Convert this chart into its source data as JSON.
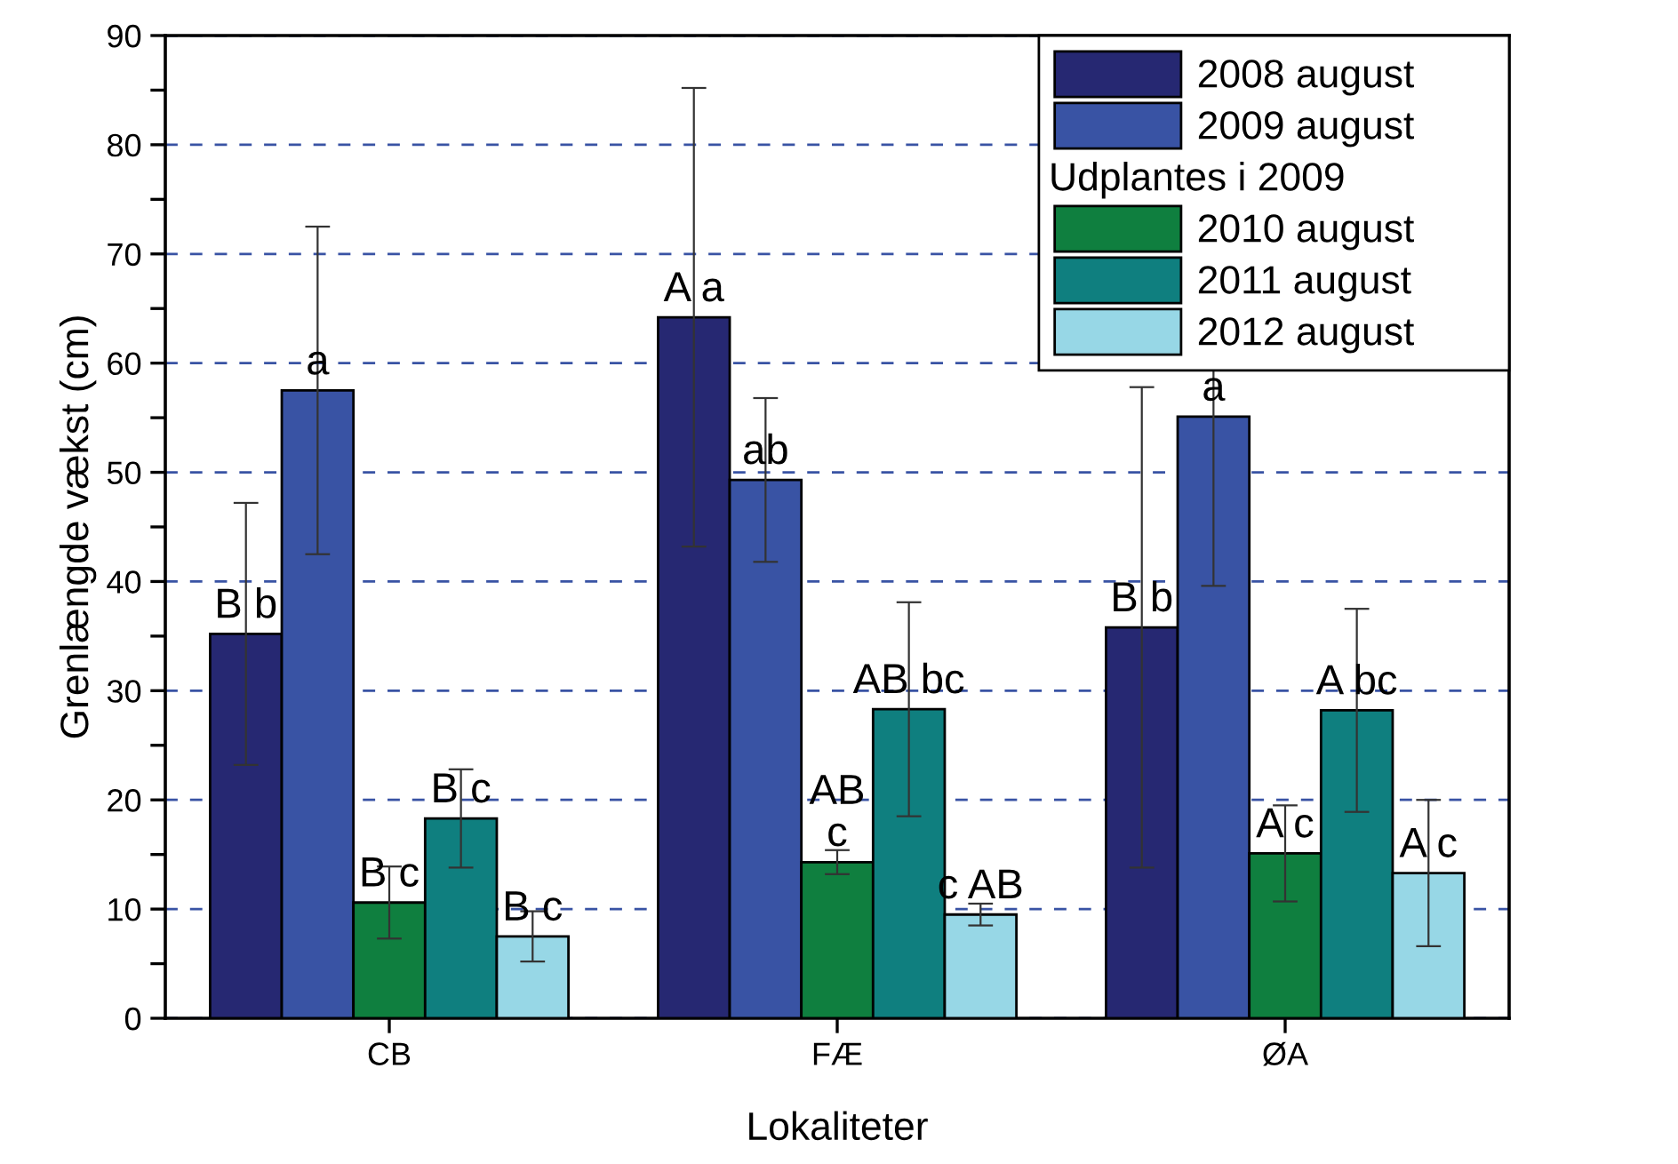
{
  "chart_data": {
    "type": "bar",
    "xlabel": "Lokaliteter",
    "ylabel": "Grenlængde vækst (cm)",
    "categories": [
      "CB",
      "FÆ",
      "ØA"
    ],
    "series": [
      {
        "name": "2008 august",
        "color": "#262872",
        "values": [
          35.2,
          64.2,
          35.8
        ],
        "errors": [
          12,
          21,
          22
        ],
        "value_labels": [
          "B b",
          "A a",
          "B b"
        ]
      },
      {
        "name": "2009 august",
        "color": "#3953a4",
        "values": [
          57.5,
          49.3,
          55.1
        ],
        "errors": [
          15,
          7.5,
          15.5
        ],
        "value_labels": [
          "a",
          "ab",
          "a"
        ]
      },
      {
        "name": "2010 august",
        "color": "#0f7f3f",
        "values": [
          10.6,
          14.3,
          15.1
        ],
        "errors": [
          3.3,
          1.1,
          4.4
        ],
        "value_labels": [
          "B c",
          "AB\nc",
          "A c"
        ]
      },
      {
        "name": "2011 august",
        "color": "#0f7f7f",
        "values": [
          18.3,
          28.3,
          28.2
        ],
        "errors": [
          4.5,
          9.8,
          9.3
        ],
        "value_labels": [
          "B c",
          "AB bc",
          "A bc"
        ]
      },
      {
        "name": "2012 august",
        "color": "#97d7e6",
        "values": [
          7.5,
          9.5,
          13.3
        ],
        "errors": [
          2.3,
          1,
          6.7
        ],
        "value_labels": [
          "B c",
          "c AB",
          "A c"
        ]
      }
    ],
    "annotations": [
      "Udplantes i 2009"
    ],
    "ylim": [
      0,
      90
    ],
    "yticks": [
      0,
      {
        "value": 5,
        "label": null
      },
      10,
      {
        "value": 15,
        "label": null
      },
      20,
      {
        "value": 25,
        "label": null
      },
      30,
      {
        "value": 35,
        "label": null
      },
      40,
      {
        "value": 45,
        "label": null
      },
      50,
      {
        "value": 55,
        "label": null
      },
      60,
      {
        "value": 65,
        "label": null
      },
      70,
      {
        "value": 75,
        "label": null
      },
      80,
      {
        "value": 85,
        "label": null
      },
      90
    ],
    "grid": "y",
    "legend": "top right"
  }
}
